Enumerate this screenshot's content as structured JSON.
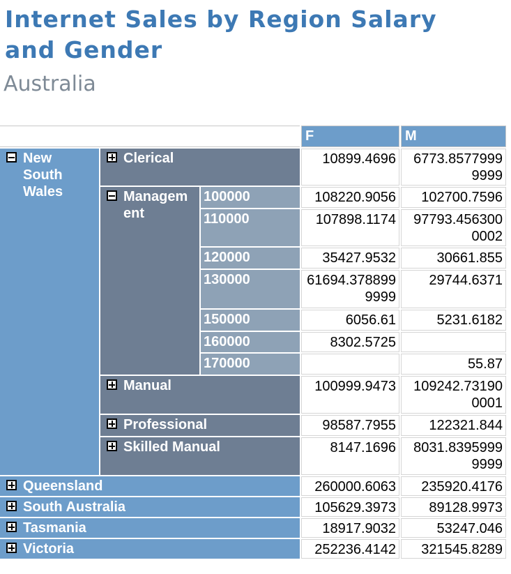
{
  "title": "Internet Sales by Region Salary and Gender",
  "subtitle": "Australia",
  "colors": {
    "title_blue": "#3D79B4",
    "subtitle_gray": "#7E8A96",
    "header_blue": "#6D9DCA",
    "occupation_gray": "#6E7E93",
    "salary_gray": "#8EA2B6",
    "data_border_gray": "#D5D5D5"
  },
  "columns": [
    "F",
    "M"
  ],
  "matrix": {
    "regions": [
      {
        "name": "New South Wales",
        "expanded": true,
        "occupations": [
          {
            "name": "Clerical",
            "expanded": false,
            "values": {
              "F": "10899.4696",
              "M": "6773.85779999999"
            }
          },
          {
            "name": "Management",
            "expanded": true,
            "salaries": [
              {
                "name": "100000",
                "values": {
                  "F": "108220.9056",
                  "M": "102700.7596"
                }
              },
              {
                "name": "110000",
                "values": {
                  "F": "107898.1174",
                  "M": "97793.4563000002"
                }
              },
              {
                "name": "120000",
                "values": {
                  "F": "35427.9532",
                  "M": "30661.855"
                }
              },
              {
                "name": "130000",
                "values": {
                  "F": "61694.3788999999",
                  "M": "29744.6371"
                }
              },
              {
                "name": "150000",
                "values": {
                  "F": "6056.61",
                  "M": "5231.6182"
                }
              },
              {
                "name": "160000",
                "values": {
                  "F": "8302.5725",
                  "M": ""
                }
              },
              {
                "name": "170000",
                "values": {
                  "F": "",
                  "M": "55.87"
                }
              }
            ]
          },
          {
            "name": "Manual",
            "expanded": false,
            "values": {
              "F": "100999.9473",
              "M": "109242.731900001"
            }
          },
          {
            "name": "Professional",
            "expanded": false,
            "values": {
              "F": "98587.7955",
              "M": "122321.844"
            }
          },
          {
            "name": "Skilled Manual",
            "expanded": false,
            "values": {
              "F": "8147.1696",
              "M": "8031.83959999999"
            }
          }
        ]
      },
      {
        "name": "Queensland",
        "expanded": false,
        "values": {
          "F": "260000.6063",
          "M": "235920.4176"
        }
      },
      {
        "name": "South Australia",
        "expanded": false,
        "values": {
          "F": "105629.3973",
          "M": "89128.9973"
        }
      },
      {
        "name": "Tasmania",
        "expanded": false,
        "values": {
          "F": "18917.9032",
          "M": "53247.046"
        }
      },
      {
        "name": "Victoria",
        "expanded": false,
        "values": {
          "F": "252236.4142",
          "M": "321545.8289"
        }
      }
    ]
  }
}
